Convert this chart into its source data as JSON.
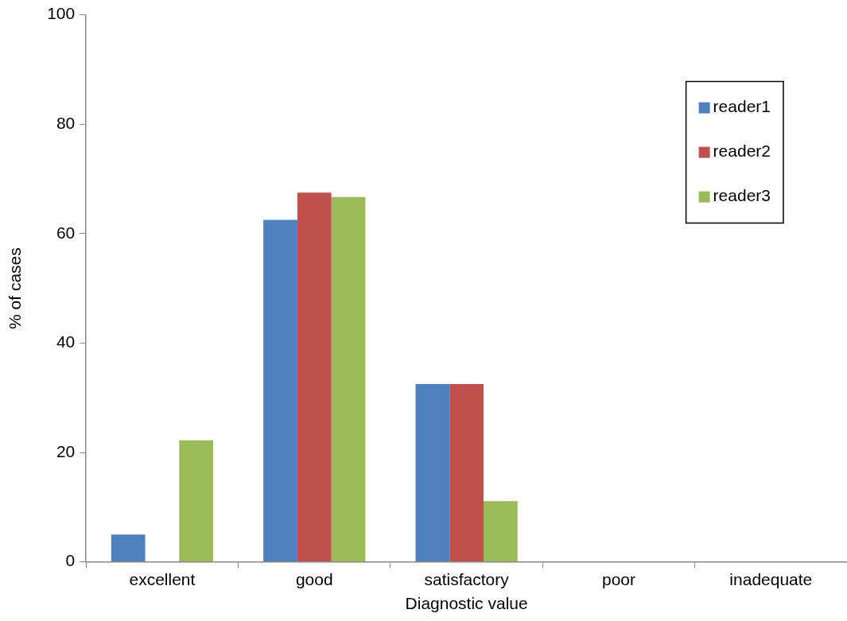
{
  "chart_data": {
    "type": "bar",
    "xlabel": "Diagnostic value",
    "ylabel": "% of cases",
    "categories": [
      "excellent",
      "good",
      "satisfactory",
      "poor",
      "inadequate"
    ],
    "series": [
      {
        "name": "reader1",
        "color": "#4f81bd",
        "values": [
          5,
          62.5,
          32.5,
          0,
          0
        ]
      },
      {
        "name": "reader2",
        "color": "#c0504d",
        "values": [
          0,
          67.5,
          32.5,
          0,
          0
        ]
      },
      {
        "name": "reader3",
        "color": "#9bbb59",
        "values": [
          22.2,
          66.7,
          11.1,
          0,
          0
        ]
      }
    ],
    "ylim": [
      0,
      100
    ],
    "yticks": [
      0,
      20,
      40,
      60,
      80,
      100
    ],
    "grid": false,
    "legend": "top right"
  }
}
